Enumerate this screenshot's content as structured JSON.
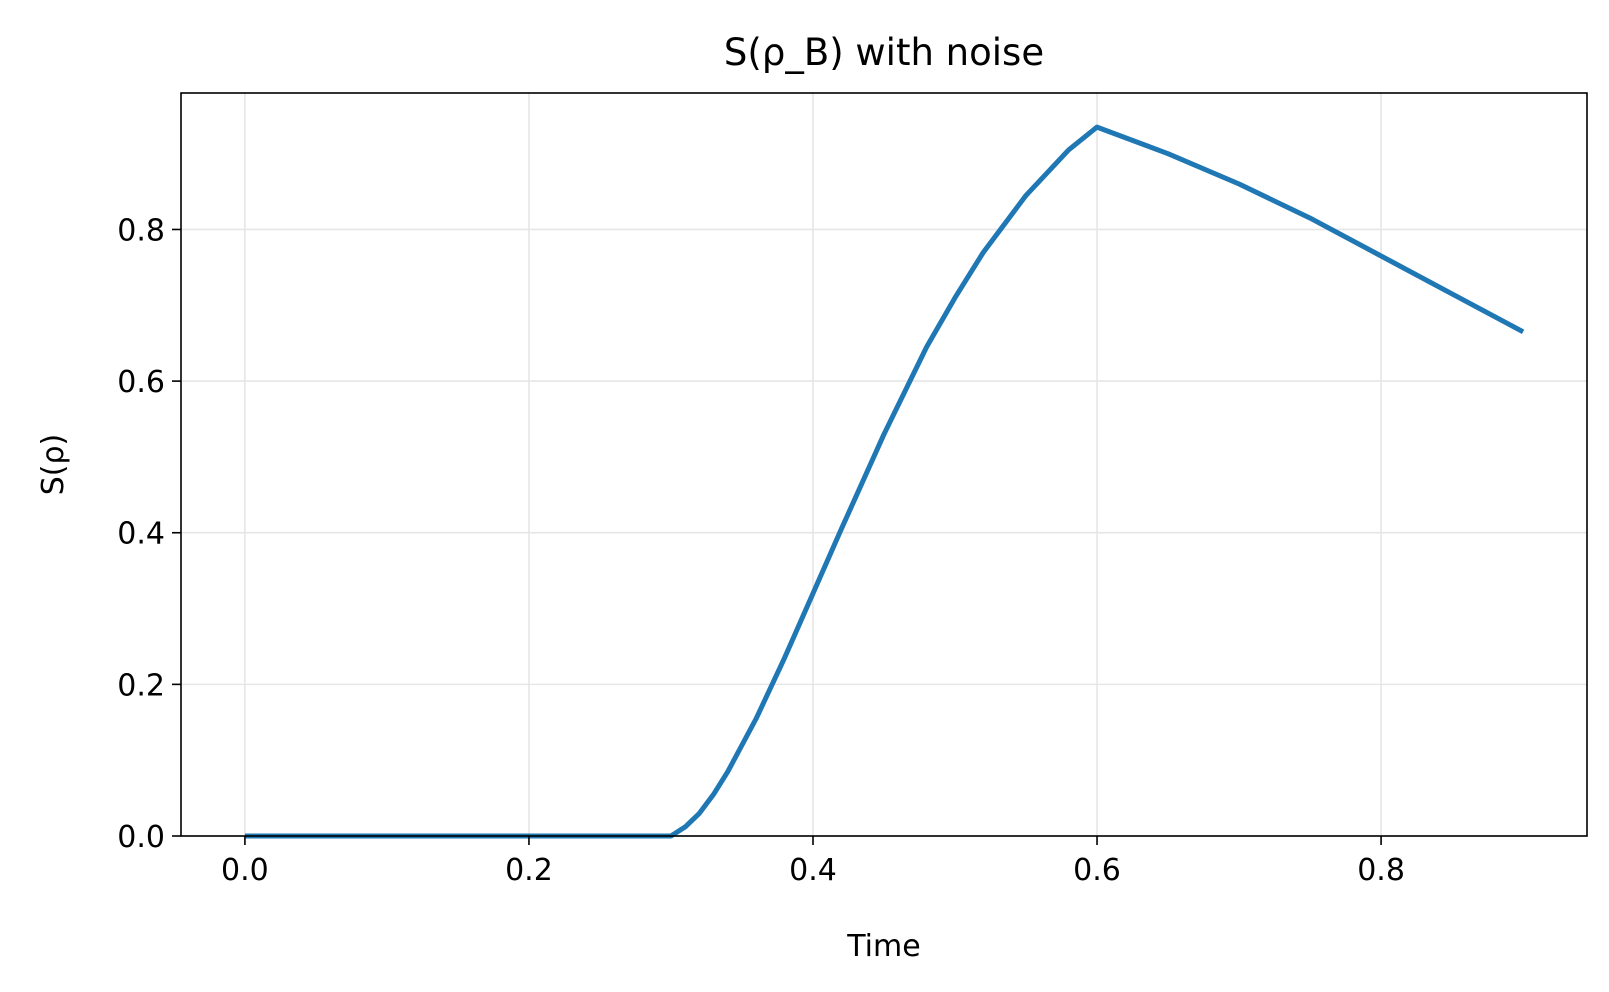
{
  "chart_data": {
    "type": "line",
    "title": "S(ρ_B) with noise",
    "xlabel": "Time",
    "ylabel": "S(ρ)",
    "xlim": [
      -0.045,
      0.945
    ],
    "ylim": [
      0.0,
      0.98
    ],
    "xticks": [
      0.0,
      0.2,
      0.4,
      0.6,
      0.8
    ],
    "xtick_labels": [
      "0.0",
      "0.2",
      "0.4",
      "0.6",
      "0.8"
    ],
    "yticks": [
      0.0,
      0.2,
      0.4,
      0.6,
      0.8
    ],
    "ytick_labels": [
      "0.0",
      "0.2",
      "0.4",
      "0.6",
      "0.8"
    ],
    "grid": true,
    "legend": "none",
    "line_color": "#1f77b4",
    "series": [
      {
        "x": [
          0.0,
          0.05,
          0.1,
          0.15,
          0.2,
          0.25,
          0.3,
          0.31,
          0.32,
          0.33,
          0.34,
          0.35,
          0.36,
          0.38,
          0.4,
          0.42,
          0.45,
          0.48,
          0.5,
          0.52,
          0.55,
          0.58,
          0.6,
          0.65,
          0.7,
          0.75,
          0.8,
          0.85,
          0.9
        ],
        "y": [
          0.0,
          0.0,
          0.0,
          0.0,
          0.0,
          0.0,
          0.0,
          0.012,
          0.03,
          0.055,
          0.085,
          0.12,
          0.155,
          0.235,
          0.32,
          0.405,
          0.53,
          0.645,
          0.71,
          0.77,
          0.845,
          0.905,
          0.935,
          0.9,
          0.86,
          0.815,
          0.765,
          0.715,
          0.665
        ]
      }
    ]
  }
}
